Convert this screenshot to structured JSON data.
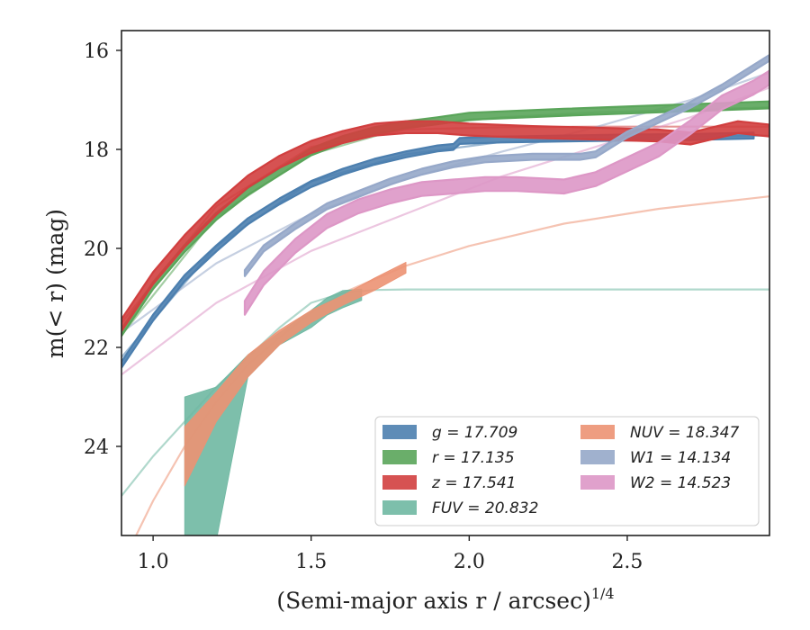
{
  "chart_data": {
    "type": "line",
    "xlabel": "(Semi-major axis r / arcsec)",
    "xlabel_sup": "1/4",
    "ylabel": "m(< r) (mag)",
    "xlim": [
      0.9,
      2.95
    ],
    "ylim": [
      25.8,
      15.6
    ],
    "y_inverted": true,
    "grid": false,
    "legend_position": "bottom-right",
    "xticks": [
      1.0,
      1.5,
      2.0,
      2.5
    ],
    "xtick_labels": [
      "1.0",
      "1.5",
      "2.0",
      "2.5"
    ],
    "yticks": [
      16,
      18,
      20,
      22,
      24
    ],
    "ytick_labels": [
      "16",
      "18",
      "20",
      "22",
      "24"
    ],
    "legend_labels": [
      "g = 17.709",
      "r = 17.135",
      "z = 17.541",
      "FUV = 20.832",
      "NUV = 18.347",
      "W1 = 14.134",
      "W2 = 14.523"
    ],
    "series": [
      {
        "name": "g = 17.709",
        "color": "#4c7faf",
        "x": [
          0.9,
          1.0,
          1.1,
          1.2,
          1.3,
          1.4,
          1.5,
          1.6,
          1.7,
          1.8,
          1.9,
          1.95,
          1.97,
          2.1,
          2.3,
          2.5,
          2.7,
          2.9
        ],
        "y": [
          22.35,
          21.4,
          20.6,
          20.0,
          19.45,
          19.05,
          18.7,
          18.45,
          18.25,
          18.1,
          17.98,
          17.95,
          17.83,
          17.8,
          17.78,
          17.76,
          17.75,
          17.72
        ],
        "band": 0.06,
        "model_x": [
          0.9,
          1.2,
          1.5,
          1.8,
          2.1,
          2.4,
          2.7,
          2.95
        ],
        "model_y": [
          22.2,
          19.95,
          18.65,
          18.1,
          17.85,
          17.78,
          17.74,
          17.72
        ]
      },
      {
        "name": "r = 17.135",
        "color": "#5aa55a",
        "x": [
          0.9,
          1.0,
          1.1,
          1.2,
          1.3,
          1.4,
          1.5,
          1.6,
          1.7,
          1.8,
          1.9,
          2.0,
          2.3,
          2.6,
          2.95
        ],
        "y": [
          21.7,
          20.75,
          20.0,
          19.35,
          18.85,
          18.45,
          18.05,
          17.8,
          17.62,
          17.5,
          17.42,
          17.33,
          17.25,
          17.18,
          17.1
        ],
        "band": 0.07,
        "model_x": [
          0.9,
          1.2,
          1.5,
          1.8,
          2.1,
          2.4,
          2.7,
          2.95
        ],
        "model_y": [
          21.75,
          19.35,
          18.1,
          17.55,
          17.35,
          17.25,
          17.2,
          17.15
        ]
      },
      {
        "name": "z = 17.541",
        "color": "#d13f3f",
        "x": [
          0.9,
          1.0,
          1.1,
          1.2,
          1.3,
          1.4,
          1.5,
          1.6,
          1.7,
          1.8,
          1.9,
          2.0,
          2.2,
          2.4,
          2.6,
          2.7,
          2.85,
          2.95
        ],
        "y": [
          21.55,
          20.6,
          19.85,
          19.2,
          18.65,
          18.25,
          17.95,
          17.75,
          17.6,
          17.55,
          17.55,
          17.6,
          17.65,
          17.68,
          17.72,
          17.78,
          17.55,
          17.62
        ],
        "band": 0.12,
        "model_x": [
          0.9,
          1.2,
          1.5,
          1.8,
          2.1,
          2.4,
          2.7,
          2.95
        ],
        "model_y": [
          21.5,
          19.15,
          17.95,
          17.6,
          17.55,
          17.54,
          17.54,
          17.54
        ]
      },
      {
        "name": "FUV = 20.832",
        "color": "#6fb8a2",
        "x": [
          1.1,
          1.2,
          1.3,
          1.4,
          1.5,
          1.55,
          1.6,
          1.66
        ],
        "y_lower": [
          23.0,
          22.8,
          22.15,
          21.7,
          21.25,
          21.0,
          20.85,
          20.82
        ],
        "y_upper": [
          25.9,
          25.9,
          22.6,
          21.95,
          21.6,
          21.35,
          21.2,
          21.05
        ],
        "model_x": [
          0.9,
          1.0,
          1.1,
          1.2,
          1.3,
          1.4,
          1.5,
          1.6,
          1.7,
          1.8,
          2.0,
          2.5,
          2.95
        ],
        "model_y": [
          25.0,
          24.2,
          23.5,
          22.8,
          22.2,
          21.6,
          21.1,
          20.9,
          20.84,
          20.83,
          20.83,
          20.83,
          20.83
        ]
      },
      {
        "name": "NUV = 18.347",
        "color": "#ec9273",
        "x": [
          1.1,
          1.2,
          1.3,
          1.4,
          1.5,
          1.6,
          1.7,
          1.8
        ],
        "y_lower": [
          23.6,
          22.9,
          22.15,
          21.65,
          21.25,
          20.95,
          20.6,
          20.28
        ],
        "y_upper": [
          24.8,
          23.5,
          22.6,
          21.95,
          21.5,
          21.15,
          20.85,
          20.5
        ],
        "model_x": [
          0.9,
          1.0,
          1.1,
          1.2,
          1.3,
          1.4,
          1.5,
          1.6,
          1.8,
          2.0,
          2.3,
          2.6,
          2.95
        ],
        "model_y": [
          26.4,
          25.1,
          24.0,
          23.1,
          22.35,
          21.8,
          21.3,
          20.9,
          20.35,
          19.95,
          19.5,
          19.2,
          18.95
        ]
      },
      {
        "name": "W1 = 14.134",
        "color": "#96a8c9",
        "x": [
          1.29,
          1.35,
          1.45,
          1.55,
          1.65,
          1.75,
          1.85,
          1.95,
          2.05,
          2.2,
          2.35,
          2.4,
          2.5,
          2.6,
          2.7,
          2.8,
          2.9,
          2.95
        ],
        "y": [
          20.5,
          20.0,
          19.55,
          19.15,
          18.9,
          18.65,
          18.45,
          18.3,
          18.2,
          18.15,
          18.15,
          18.1,
          17.7,
          17.4,
          17.1,
          16.75,
          16.35,
          16.15
        ],
        "band": 0.06,
        "model_x": [
          0.9,
          1.2,
          1.5,
          1.8,
          2.1,
          2.4,
          2.7,
          2.95
        ],
        "model_y": [
          21.7,
          20.3,
          19.3,
          18.6,
          18.05,
          17.55,
          17.0,
          16.45
        ]
      },
      {
        "name": "W2 = 14.523",
        "color": "#dd97c6",
        "x": [
          1.29,
          1.35,
          1.45,
          1.55,
          1.65,
          1.75,
          1.85,
          1.95,
          2.05,
          2.15,
          2.3,
          2.4,
          2.5,
          2.6,
          2.7,
          2.8,
          2.9,
          2.95
        ],
        "y": [
          21.2,
          20.6,
          19.95,
          19.45,
          19.15,
          18.95,
          18.8,
          18.75,
          18.7,
          18.7,
          18.75,
          18.6,
          18.3,
          18.0,
          17.55,
          17.05,
          16.75,
          16.55
        ],
        "band": 0.14,
        "model_x": [
          0.9,
          1.2,
          1.5,
          1.8,
          2.1,
          2.4,
          2.7,
          2.95
        ],
        "model_y": [
          22.55,
          21.1,
          20.05,
          19.3,
          18.55,
          17.95,
          17.35,
          16.75
        ]
      }
    ]
  }
}
